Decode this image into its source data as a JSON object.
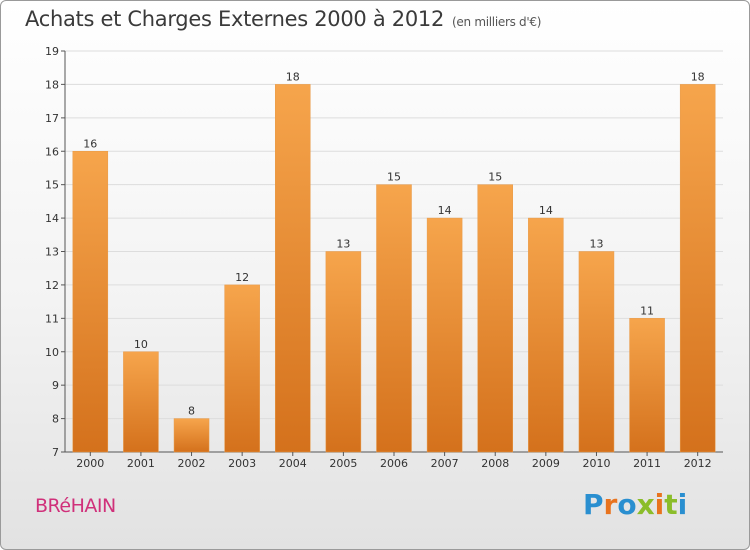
{
  "header": {
    "title": "Achats et Charges Externes 2000 à 2012",
    "subtitle": "(en milliers d'€)"
  },
  "footer": {
    "town": "BRéHAIN",
    "brand": "Proxiti",
    "brand_colors": [
      "#2a8fd0",
      "#e8731e",
      "#2a8fd0",
      "#8bbd2a",
      "#e8731e",
      "#8bbd2a",
      "#2a8fd0"
    ]
  },
  "colors": {
    "bar_light": "#f6a54c",
    "bar_dark": "#d4711c",
    "grid": "#dddddd"
  },
  "chart_data": {
    "type": "bar",
    "title": "Achats et Charges Externes 2000 à 2012",
    "subtitle": "(en milliers d'€)",
    "xlabel": "",
    "ylabel": "",
    "categories": [
      "2000",
      "2001",
      "2002",
      "2003",
      "2004",
      "2005",
      "2006",
      "2007",
      "2008",
      "2009",
      "2010",
      "2011",
      "2012"
    ],
    "values": [
      16,
      10,
      8,
      12,
      18,
      13,
      15,
      14,
      15,
      14,
      13,
      11,
      18
    ],
    "ylim": [
      7,
      19
    ],
    "yticks": [
      7,
      8,
      9,
      10,
      11,
      12,
      13,
      14,
      15,
      16,
      17,
      18,
      19
    ],
    "grid": true,
    "legend": "none"
  }
}
